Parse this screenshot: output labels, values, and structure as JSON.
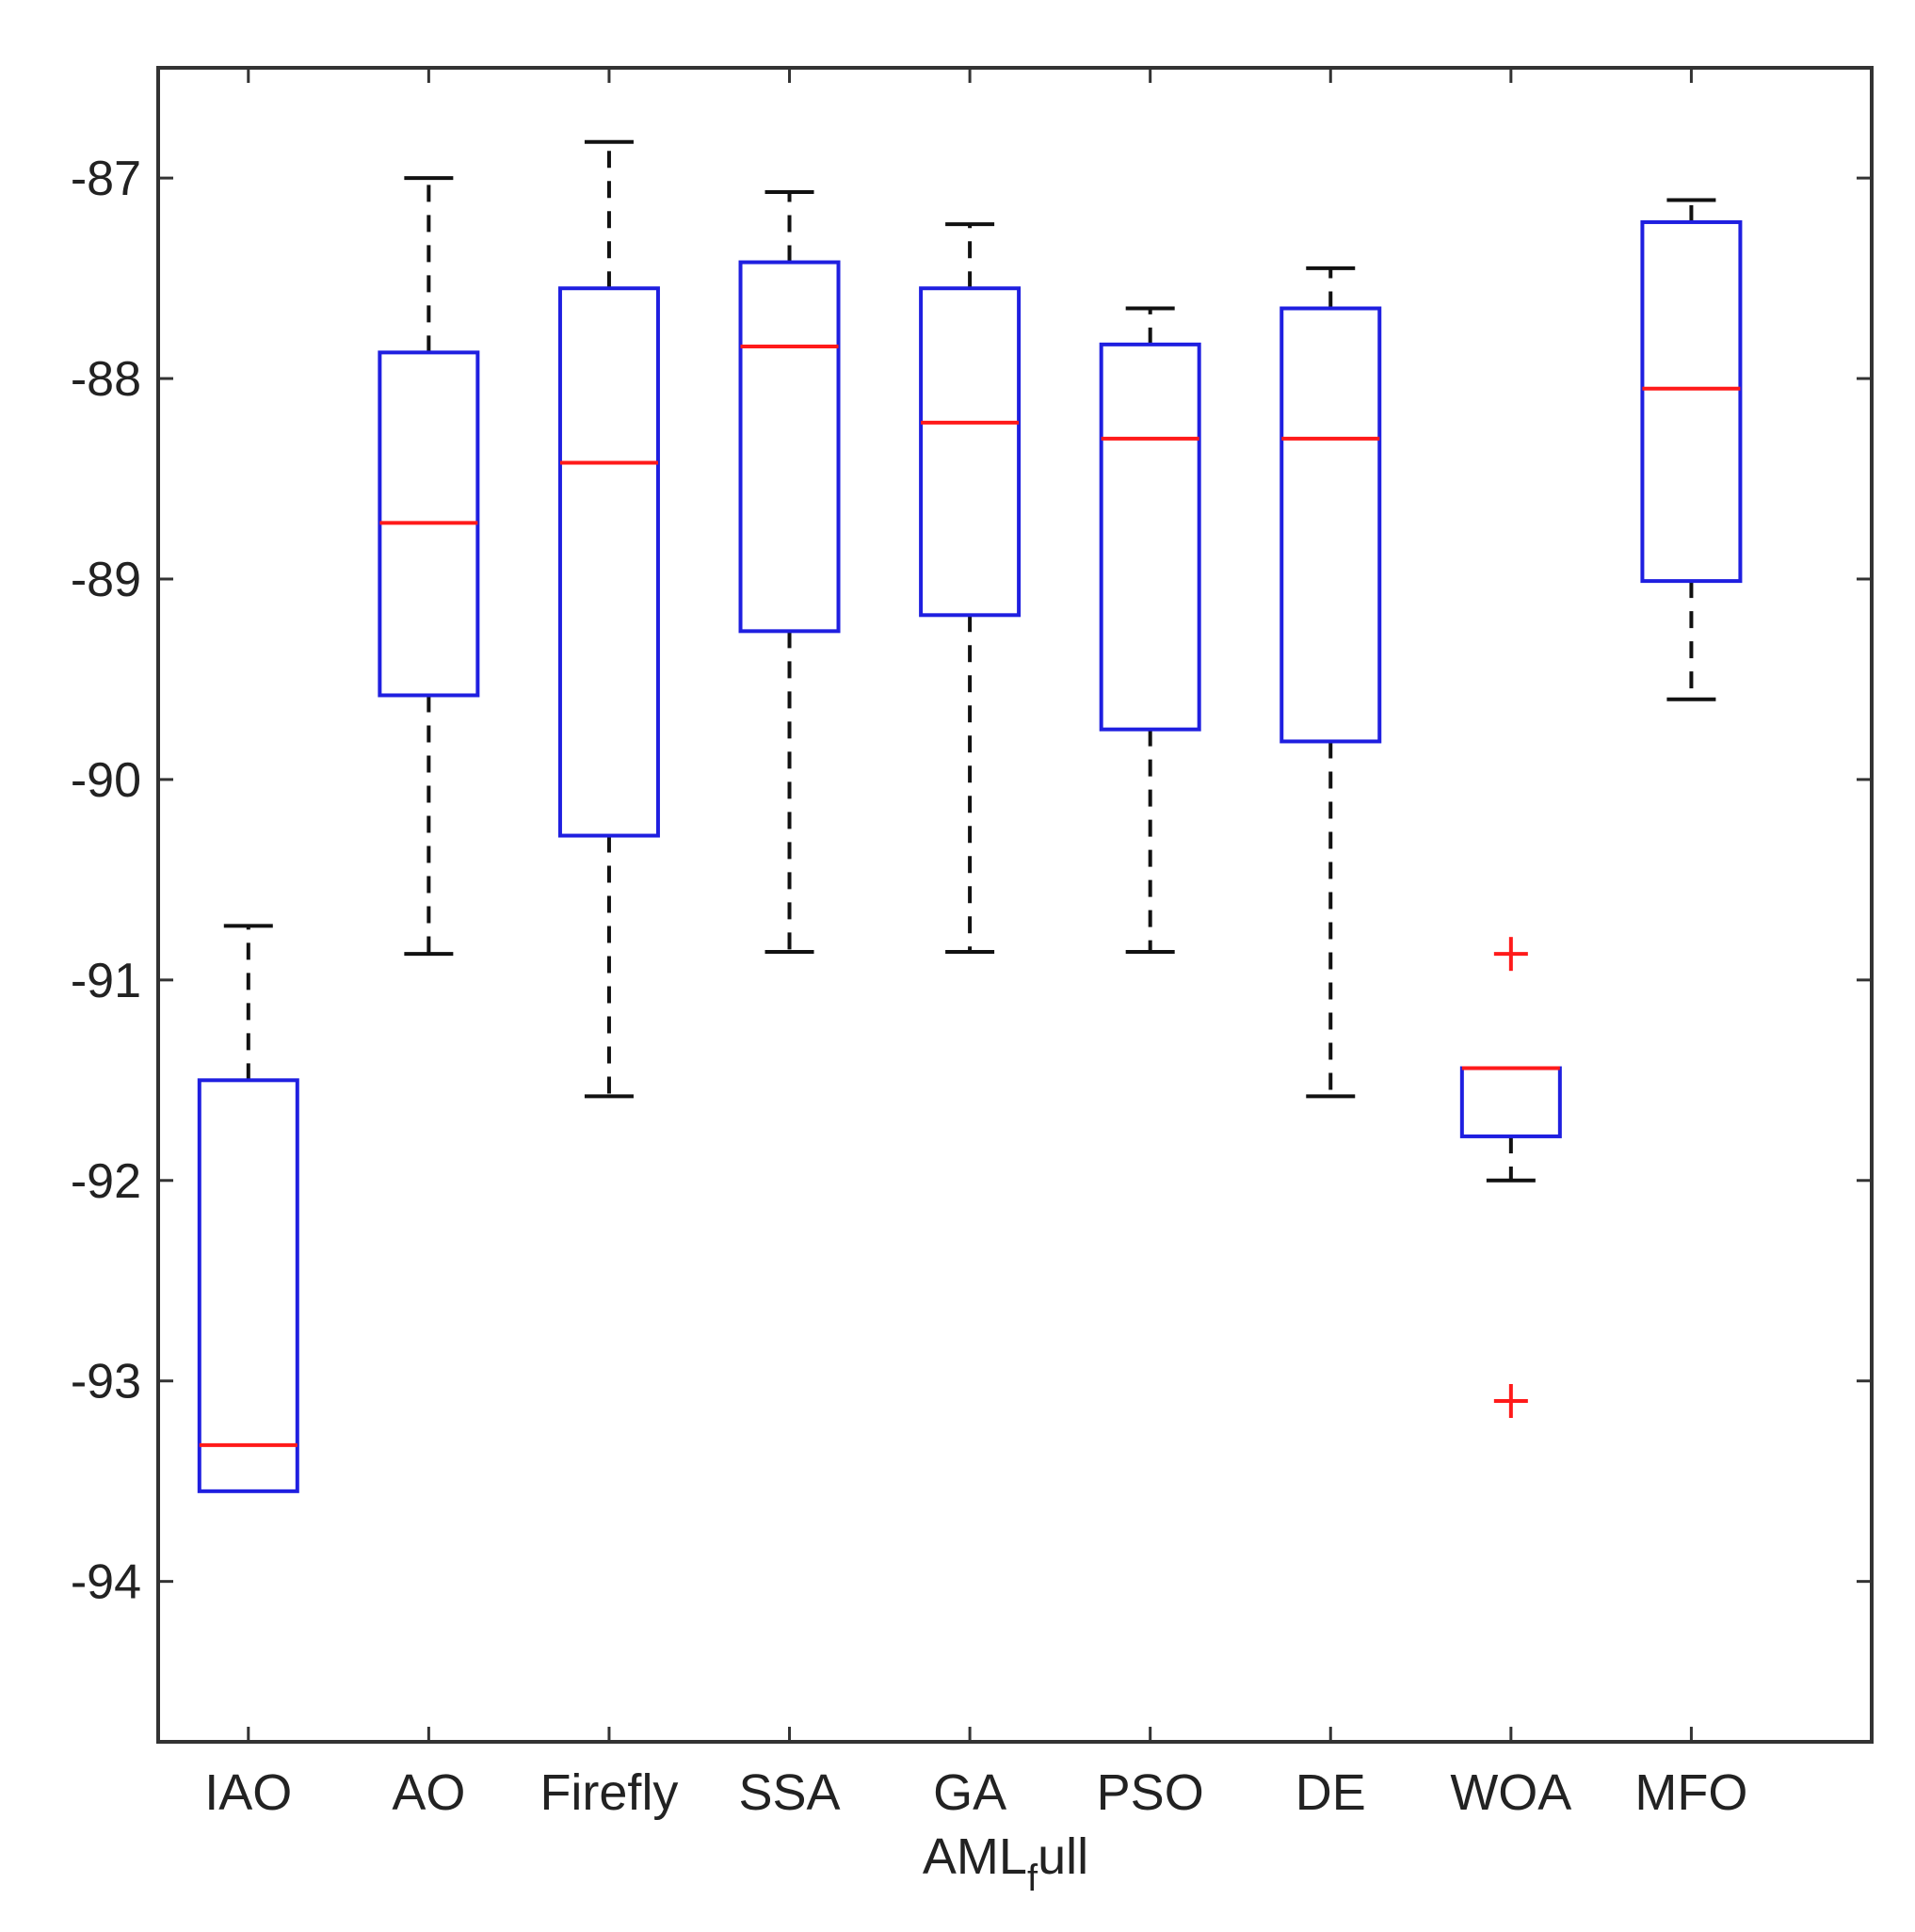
{
  "chart_data": {
    "type": "box",
    "title": "",
    "xlabel": {
      "main": "AML",
      "subscript": "f",
      "suffix": "ull"
    },
    "ylabel": "",
    "ylim": [
      -94.8,
      -86.45
    ],
    "yticks": [
      -94,
      -93,
      -92,
      -91,
      -90,
      -89,
      -88,
      -87
    ],
    "ytick_labels": [
      "-94",
      "-93",
      "-92",
      "-91",
      "-90",
      "-89",
      "-88",
      "-87"
    ],
    "categories": [
      "IAO",
      "AO",
      "Firefly",
      "SSA",
      "GA",
      "PSO",
      "DE",
      "WOA",
      "MFO"
    ],
    "boxes": [
      {
        "name": "IAO",
        "whisker_low": -93.55,
        "q1": -93.55,
        "median": -93.32,
        "q3": -91.5,
        "whisker_high": -90.73,
        "outliers": []
      },
      {
        "name": "AO",
        "whisker_low": -90.87,
        "q1": -89.58,
        "median": -88.72,
        "q3": -87.87,
        "whisker_high": -87.0,
        "outliers": []
      },
      {
        "name": "Firefly",
        "whisker_low": -91.58,
        "q1": -90.28,
        "median": -88.42,
        "q3": -87.55,
        "whisker_high": -86.82,
        "outliers": []
      },
      {
        "name": "SSA",
        "whisker_low": -90.86,
        "q1": -89.26,
        "median": -87.84,
        "q3": -87.42,
        "whisker_high": -87.07,
        "outliers": []
      },
      {
        "name": "GA",
        "whisker_low": -90.86,
        "q1": -89.18,
        "median": -88.22,
        "q3": -87.55,
        "whisker_high": -87.23,
        "outliers": []
      },
      {
        "name": "PSO",
        "whisker_low": -90.86,
        "q1": -89.75,
        "median": -88.3,
        "q3": -87.83,
        "whisker_high": -87.65,
        "outliers": []
      },
      {
        "name": "DE",
        "whisker_low": -91.58,
        "q1": -89.81,
        "median": -88.3,
        "q3": -87.65,
        "whisker_high": -87.45,
        "outliers": []
      },
      {
        "name": "WOA",
        "whisker_low": -92.0,
        "q1": -91.78,
        "median": -91.44,
        "q3": -91.44,
        "whisker_high": -91.44,
        "outliers": [
          -90.87,
          -93.1
        ]
      },
      {
        "name": "MFO",
        "whisker_low": -89.6,
        "q1": -89.01,
        "median": -88.05,
        "q3": -87.22,
        "whisker_high": -87.11,
        "outliers": []
      }
    ],
    "colors": {
      "box": "#1f1fe0",
      "median": "#ff1a1a",
      "whisker": "#111111",
      "outlier": "#ff1a1a",
      "axis": "#333333",
      "text": "#222222"
    },
    "grid": false
  }
}
